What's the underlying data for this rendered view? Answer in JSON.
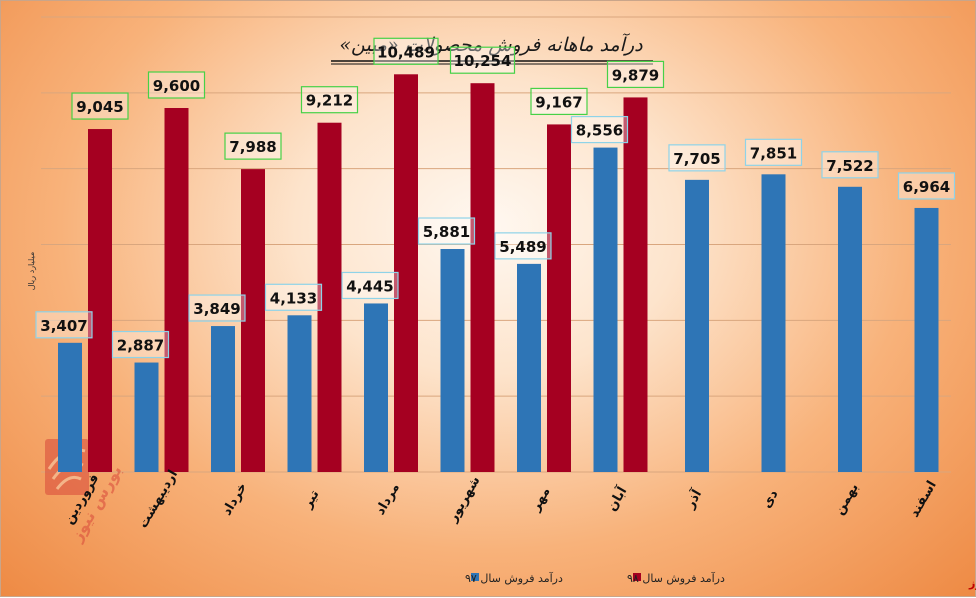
{
  "chart_data": {
    "type": "bar",
    "title": "درآمد ماهانه فروش محصولات «مبین»",
    "ylabel": "میلیارد ریال",
    "ylim": [
      0,
      12000
    ],
    "ytick_step": 2000,
    "grid": true,
    "legend_position": "bottom",
    "categories": [
      "فروردین",
      "اردیبهشت",
      "خرداد",
      "تیر",
      "مرداد",
      "شهریور",
      "مهر",
      "آبان",
      "آذر",
      "دی",
      "بهمن",
      "اسفند"
    ],
    "series": [
      {
        "name": "درآمد فروش سال ۹۷",
        "color": "#2e75b6",
        "values": [
          3407,
          2887,
          3849,
          4133,
          4445,
          5881,
          5489,
          8556,
          7705,
          7851,
          7522,
          6964
        ],
        "labels": [
          "3,407",
          "2,887",
          "3,849",
          "4,133",
          "4,445",
          "5,881",
          "5,489",
          "8,556",
          "7,705",
          "7,851",
          "7,522",
          "6,964"
        ],
        "label_border": "#8fd3e8"
      },
      {
        "name": "درآمد فروش سال ۹۸",
        "color": "#a50021",
        "values": [
          9045,
          9600,
          7988,
          9212,
          10489,
          10254,
          9167,
          9879,
          null,
          null,
          null,
          null
        ],
        "labels": [
          "9,045",
          "9,600",
          "7,988",
          "9,212",
          "10,489",
          "10,254",
          "9,167",
          "9,879",
          null,
          null,
          null,
          null
        ],
        "label_border": "#47d147"
      }
    ]
  },
  "source": "بورس نیوز",
  "watermark": "بورس نیوز"
}
